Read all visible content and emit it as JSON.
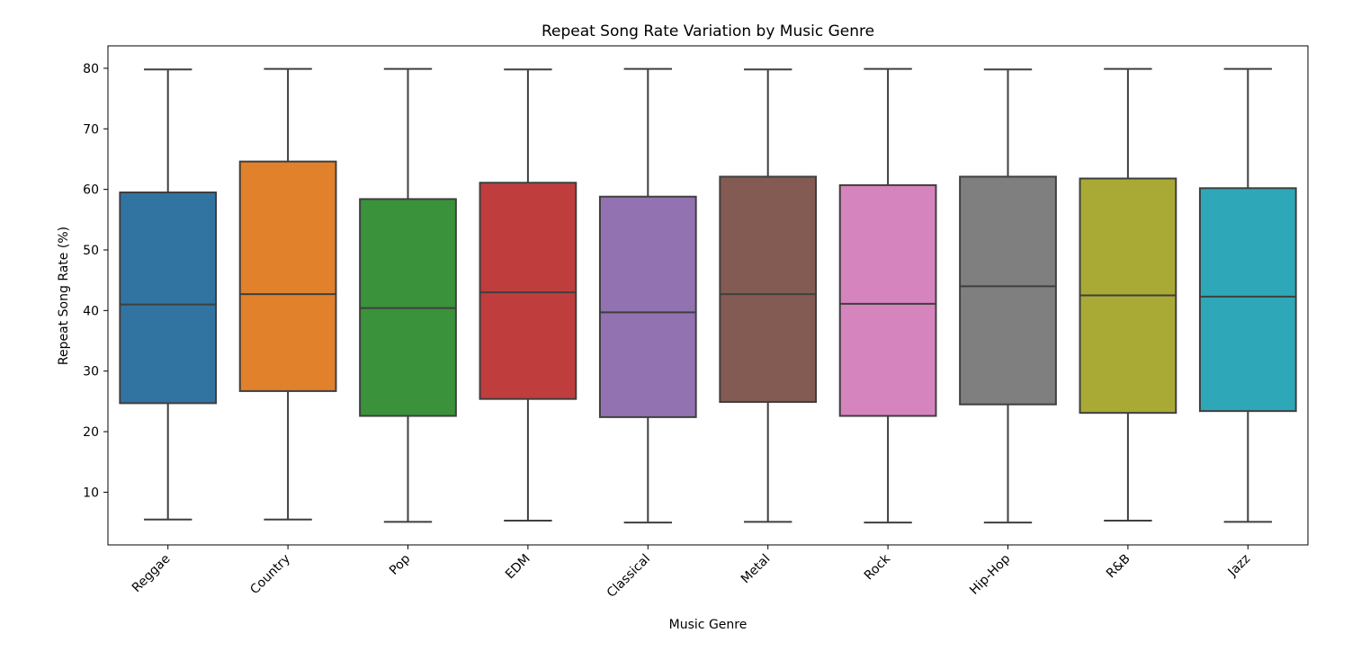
{
  "chart_data": {
    "type": "boxplot",
    "title": "Repeat Song Rate Variation by Music Genre",
    "xlabel": "Music Genre",
    "ylabel": "Repeat Song Rate (%)",
    "ylim": [
      1.3,
      83.7
    ],
    "yticks": [
      10,
      20,
      30,
      40,
      50,
      60,
      70,
      80
    ],
    "grid": false,
    "legend": "none",
    "categories": [
      "Reggae",
      "Country",
      "Pop",
      "EDM",
      "Classical",
      "Metal",
      "Rock",
      "Hip-Hop",
      "R&B",
      "Jazz"
    ],
    "colors": [
      "#3274a1",
      "#e1812c",
      "#3a923a",
      "#c03d3e",
      "#9372b2",
      "#845b53",
      "#d684bd",
      "#7f7f7f",
      "#a9aa35",
      "#2ea8b8"
    ],
    "edge_color": "#3f3f3f",
    "boxes": [
      {
        "category": "Reggae",
        "min": 5.5,
        "q1": 24.7,
        "median": 41.0,
        "q3": 59.5,
        "max": 79.8
      },
      {
        "category": "Country",
        "min": 5.5,
        "q1": 26.7,
        "median": 42.7,
        "q3": 64.6,
        "max": 79.9
      },
      {
        "category": "Pop",
        "min": 5.1,
        "q1": 22.6,
        "median": 40.4,
        "q3": 58.4,
        "max": 79.9
      },
      {
        "category": "EDM",
        "min": 5.3,
        "q1": 25.4,
        "median": 43.0,
        "q3": 61.1,
        "max": 79.8
      },
      {
        "category": "Classical",
        "min": 5.0,
        "q1": 22.4,
        "median": 39.7,
        "q3": 58.8,
        "max": 79.9
      },
      {
        "category": "Metal",
        "min": 5.1,
        "q1": 24.9,
        "median": 42.7,
        "q3": 62.1,
        "max": 79.8
      },
      {
        "category": "Rock",
        "min": 5.0,
        "q1": 22.6,
        "median": 41.1,
        "q3": 60.7,
        "max": 79.9
      },
      {
        "category": "Hip-Hop",
        "min": 5.0,
        "q1": 24.5,
        "median": 44.0,
        "q3": 62.1,
        "max": 79.8
      },
      {
        "category": "R&B",
        "min": 5.3,
        "q1": 23.1,
        "median": 42.5,
        "q3": 61.8,
        "max": 79.9
      },
      {
        "category": "Jazz",
        "min": 5.1,
        "q1": 23.4,
        "median": 42.3,
        "q3": 60.2,
        "max": 79.9
      }
    ]
  }
}
